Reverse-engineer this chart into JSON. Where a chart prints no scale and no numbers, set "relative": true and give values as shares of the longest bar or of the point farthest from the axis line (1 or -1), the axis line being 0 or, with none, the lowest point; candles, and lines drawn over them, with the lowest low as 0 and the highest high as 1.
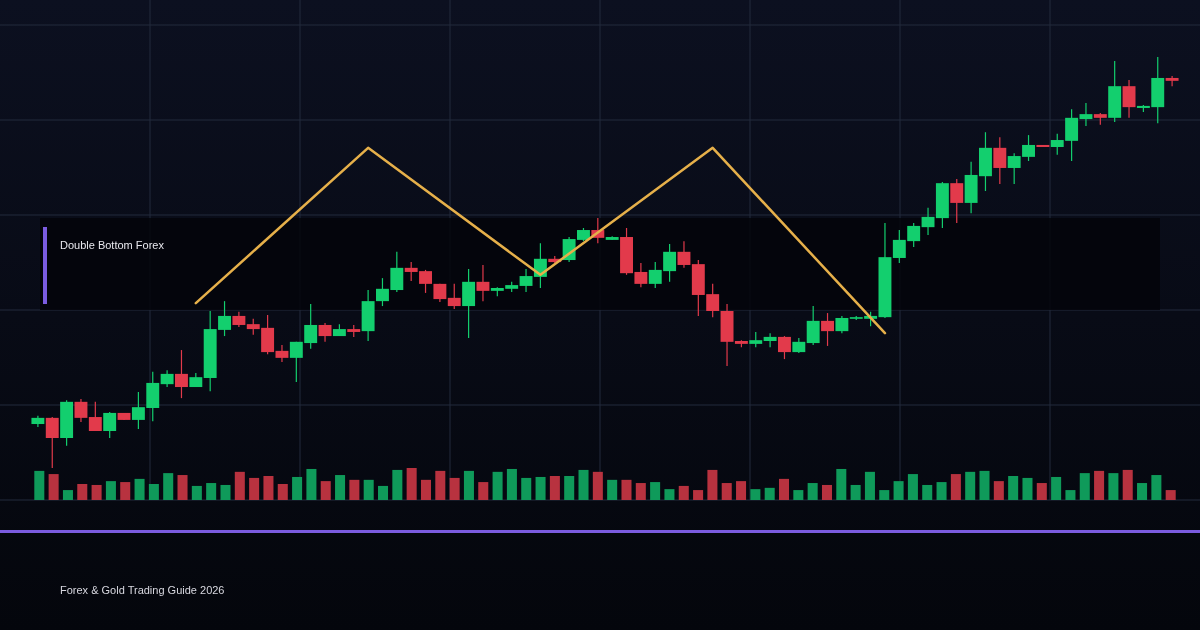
{
  "chart_data": [
    {
      "type": "candlestick",
      "title": "Double Bottom Forex",
      "annotations": [
        "Forex & Gold Trading Guide 2026"
      ],
      "relative": true,
      "grid": true,
      "series": [
        {
          "type": "line",
          "color": "#e6b04a",
          "values": [
            null,
            null,
            null,
            null,
            null,
            null,
            null,
            null,
            null,
            null,
            null,
            0.401,
            null,
            null,
            null,
            null,
            null,
            null,
            null,
            null,
            null,
            null,
            null,
            0.779,
            null,
            null,
            null,
            null,
            null,
            null,
            null,
            null,
            null,
            null,
            null,
            0.47,
            null,
            null,
            null,
            null,
            null,
            null,
            null,
            null,
            null,
            null,
            null,
            0.779,
            null,
            null,
            null,
            null,
            null,
            null,
            null,
            null,
            null,
            null,
            null,
            0.328,
            null,
            null,
            null,
            null,
            null,
            null,
            null,
            null,
            null,
            null,
            null,
            null,
            null,
            null,
            null,
            null,
            null,
            null,
            null,
            null
          ]
        }
      ],
      "categories": [
        null,
        null,
        null,
        null,
        null,
        null,
        null,
        null,
        null,
        null,
        null,
        null,
        null,
        null,
        null,
        null,
        null,
        null,
        null,
        null,
        null,
        null,
        null,
        null,
        null,
        null,
        null,
        null,
        null,
        null,
        null,
        null,
        null,
        null,
        null,
        null,
        null,
        null,
        null,
        null,
        null,
        null,
        null,
        null,
        null,
        null,
        null,
        null,
        null,
        null,
        null,
        null,
        null,
        null,
        null,
        null,
        null,
        null,
        null,
        null,
        null,
        null,
        null,
        null,
        null,
        null,
        null,
        null,
        null,
        null,
        null,
        null,
        null,
        null,
        null,
        null,
        null,
        null,
        null,
        null
      ],
      "ohlc": [
        [
          0.107,
          0.127,
          0.1,
          0.122
        ],
        [
          0.122,
          0.124,
          0,
          0.073
        ],
        [
          0.073,
          0.165,
          0.054,
          0.161
        ],
        [
          0.161,
          0.168,
          0.112,
          0.122
        ],
        [
          0.124,
          0.161,
          0.09,
          0.09
        ],
        [
          0.09,
          0.136,
          0.073,
          0.134
        ],
        [
          0.134,
          0.134,
          0.117,
          0.117
        ],
        [
          0.117,
          0.185,
          0.095,
          0.148
        ],
        [
          0.146,
          0.234,
          0.114,
          0.207
        ],
        [
          0.204,
          0.238,
          0.197,
          0.229
        ],
        [
          0.229,
          0.287,
          0.17,
          0.197
        ],
        [
          0.197,
          0.231,
          0.197,
          0.221
        ],
        [
          0.219,
          0.382,
          0.187,
          0.338
        ],
        [
          0.336,
          0.406,
          0.321,
          0.37
        ],
        [
          0.37,
          0.38,
          0.343,
          0.348
        ],
        [
          0.35,
          0.363,
          0.324,
          0.338
        ],
        [
          0.341,
          0.372,
          0.277,
          0.282
        ],
        [
          0.285,
          0.299,
          0.258,
          0.268
        ],
        [
          0.268,
          0.307,
          0.209,
          0.307
        ],
        [
          0.304,
          0.399,
          0.29,
          0.348
        ],
        [
          0.348,
          0.353,
          0.307,
          0.321
        ],
        [
          0.321,
          0.35,
          0.321,
          0.338
        ],
        [
          0.338,
          0.348,
          0.319,
          0.331
        ],
        [
          0.333,
          0.433,
          0.309,
          0.406
        ],
        [
          0.406,
          0.462,
          0.394,
          0.436
        ],
        [
          0.433,
          0.526,
          0.428,
          0.487
        ],
        [
          0.487,
          0.501,
          0.455,
          0.477
        ],
        [
          0.479,
          0.482,
          0.426,
          0.448
        ],
        [
          0.448,
          0.448,
          0.404,
          0.411
        ],
        [
          0.414,
          0.448,
          0.387,
          0.394
        ],
        [
          0.394,
          0.484,
          0.316,
          0.453
        ],
        [
          0.453,
          0.494,
          0.406,
          0.431
        ],
        [
          0.431,
          0.44,
          0.418,
          0.438
        ],
        [
          0.436,
          0.453,
          0.428,
          0.445
        ],
        [
          0.443,
          0.484,
          0.428,
          0.467
        ],
        [
          0.465,
          0.547,
          0.438,
          0.509
        ],
        [
          0.509,
          0.516,
          0.499,
          0.501
        ],
        [
          0.506,
          0.562,
          0.501,
          0.557
        ],
        [
          0.555,
          0.584,
          0.552,
          0.579
        ],
        [
          0.579,
          0.608,
          0.547,
          0.56
        ],
        [
          0.555,
          0.564,
          0.555,
          0.562
        ],
        [
          0.562,
          0.584,
          0.47,
          0.474
        ],
        [
          0.477,
          0.499,
          0.44,
          0.448
        ],
        [
          0.448,
          0.501,
          0.438,
          0.482
        ],
        [
          0.479,
          0.545,
          0.453,
          0.526
        ],
        [
          0.526,
          0.552,
          0.487,
          0.494
        ],
        [
          0.496,
          0.506,
          0.37,
          0.421
        ],
        [
          0.423,
          0.448,
          0.367,
          0.382
        ],
        [
          0.382,
          0.399,
          0.248,
          0.307
        ],
        [
          0.309,
          0.311,
          0.294,
          0.302
        ],
        [
          0.302,
          0.331,
          0.294,
          0.311
        ],
        [
          0.309,
          0.328,
          0.294,
          0.319
        ],
        [
          0.319,
          0.321,
          0.265,
          0.282
        ],
        [
          0.282,
          0.316,
          0.28,
          0.307
        ],
        [
          0.304,
          0.394,
          0.299,
          0.358
        ],
        [
          0.358,
          0.377,
          0.297,
          0.333
        ],
        [
          0.333,
          0.37,
          0.328,
          0.365
        ],
        [
          0.363,
          0.37,
          0.36,
          0.367
        ],
        [
          0.363,
          0.38,
          0.345,
          0.37
        ],
        [
          0.367,
          0.596,
          0.365,
          0.513
        ],
        [
          0.511,
          0.579,
          0.499,
          0.555
        ],
        [
          0.552,
          0.596,
          0.538,
          0.589
        ],
        [
          0.586,
          0.633,
          0.567,
          0.611
        ],
        [
          0.608,
          0.696,
          0.584,
          0.693
        ],
        [
          0.693,
          0.703,
          0.596,
          0.645
        ],
        [
          0.645,
          0.745,
          0.62,
          0.713
        ],
        [
          0.71,
          0.817,
          0.674,
          0.779
        ],
        [
          0.779,
          0.805,
          0.691,
          0.73
        ],
        [
          0.73,
          0.766,
          0.691,
          0.759
        ],
        [
          0.757,
          0.81,
          0.747,
          0.786
        ],
        [
          0.786,
          0.786,
          0.781,
          0.781
        ],
        [
          0.781,
          0.813,
          0.762,
          0.798
        ],
        [
          0.796,
          0.873,
          0.747,
          0.852
        ],
        [
          0.849,
          0.888,
          0.832,
          0.861
        ],
        [
          0.861,
          0.864,
          0.835,
          0.852
        ],
        [
          0.852,
          0.99,
          0.842,
          0.929
        ],
        [
          0.929,
          0.944,
          0.852,
          0.878
        ],
        [
          0.876,
          0.883,
          0.866,
          0.881
        ],
        [
          0.878,
          1,
          0.839,
          0.949
        ],
        [
          0.949,
          0.954,
          0.929,
          0.942
        ]
      ]
    },
    {
      "type": "bar",
      "relative": true,
      "categories": [
        null,
        null,
        null,
        null,
        null,
        null,
        null,
        null,
        null,
        null,
        null,
        null,
        null,
        null,
        null,
        null,
        null,
        null,
        null,
        null,
        null,
        null,
        null,
        null,
        null,
        null,
        null,
        null,
        null,
        null,
        null,
        null,
        null,
        null,
        null,
        null,
        null,
        null,
        null,
        null,
        null,
        null,
        null,
        null,
        null,
        null,
        null,
        null,
        null,
        null,
        null,
        null,
        null,
        null,
        null,
        null,
        null,
        null,
        null,
        null,
        null,
        null,
        null,
        null,
        null,
        null,
        null,
        null,
        null,
        null,
        null,
        null,
        null,
        null,
        null,
        null,
        null,
        null,
        null,
        null
      ],
      "values": [
        0.91,
        0.81,
        0.31,
        0.5,
        0.47,
        0.59,
        0.56,
        0.66,
        0.5,
        0.84,
        0.78,
        0.44,
        0.53,
        0.47,
        0.88,
        0.69,
        0.75,
        0.5,
        0.72,
        0.97,
        0.59,
        0.78,
        0.63,
        0.63,
        0.44,
        0.94,
        1,
        0.63,
        0.91,
        0.69,
        0.91,
        0.56,
        0.88,
        0.97,
        0.69,
        0.72,
        0.75,
        0.75,
        0.94,
        0.88,
        0.63,
        0.63,
        0.53,
        0.56,
        0.34,
        0.44,
        0.31,
        0.94,
        0.53,
        0.59,
        0.34,
        0.38,
        0.66,
        0.31,
        0.53,
        0.47,
        0.97,
        0.47,
        0.88,
        0.31,
        0.59,
        0.81,
        0.47,
        0.56,
        0.81,
        0.88,
        0.91,
        0.59,
        0.75,
        0.69,
        0.53,
        0.72,
        0.31,
        0.84,
        0.91,
        0.84,
        0.94,
        0.53,
        0.78,
        0.31
      ],
      "colors": [
        "#0f9a5a",
        "#b8323f",
        "#0f9a5a",
        "#b8323f",
        "#b8323f",
        "#0f9a5a",
        "#b8323f",
        "#0f9a5a",
        "#0f9a5a",
        "#0f9a5a",
        "#b8323f",
        "#0f9a5a",
        "#0f9a5a",
        "#0f9a5a",
        "#b8323f",
        "#b8323f",
        "#b8323f",
        "#b8323f",
        "#0f9a5a",
        "#0f9a5a",
        "#b8323f",
        "#0f9a5a",
        "#b8323f",
        "#0f9a5a",
        "#0f9a5a",
        "#0f9a5a",
        "#b8323f",
        "#b8323f",
        "#b8323f",
        "#b8323f",
        "#0f9a5a",
        "#b8323f",
        "#0f9a5a",
        "#0f9a5a",
        "#0f9a5a",
        "#0f9a5a",
        "#b8323f",
        "#0f9a5a",
        "#0f9a5a",
        "#b8323f",
        "#0f9a5a",
        "#b8323f",
        "#b8323f",
        "#0f9a5a",
        "#0f9a5a",
        "#b8323f",
        "#b8323f",
        "#b8323f",
        "#b8323f",
        "#b8323f",
        "#0f9a5a",
        "#0f9a5a",
        "#b8323f",
        "#0f9a5a",
        "#0f9a5a",
        "#b8323f",
        "#0f9a5a",
        "#0f9a5a",
        "#0f9a5a",
        "#0f9a5a",
        "#0f9a5a",
        "#0f9a5a",
        "#0f9a5a",
        "#0f9a5a",
        "#b8323f",
        "#0f9a5a",
        "#0f9a5a",
        "#b8323f",
        "#0f9a5a",
        "#0f9a5a",
        "#b8323f",
        "#0f9a5a",
        "#0f9a5a",
        "#0f9a5a",
        "#b8323f",
        "#0f9a5a",
        "#b8323f",
        "#0f9a5a",
        "#0f9a5a",
        "#b8323f"
      ]
    }
  ]
}
